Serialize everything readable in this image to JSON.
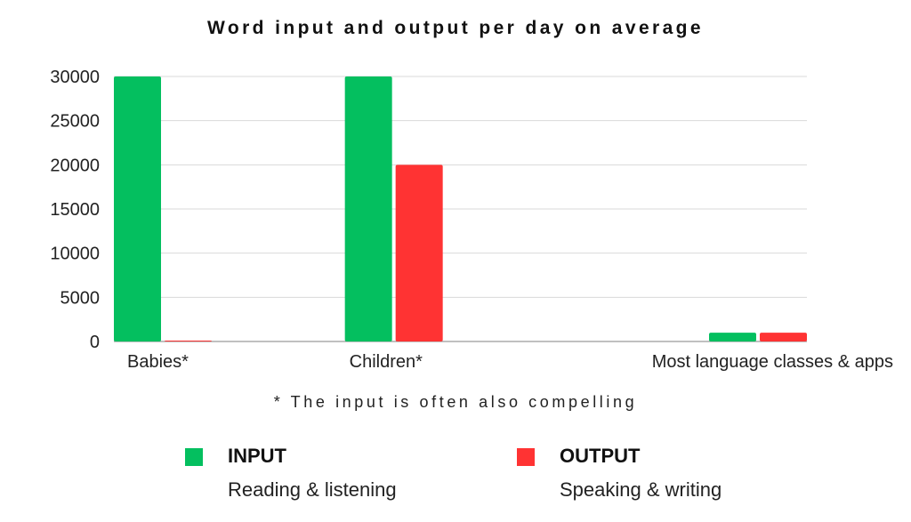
{
  "chart_data": {
    "type": "bar",
    "title": "Word input and output per day on average",
    "categories": [
      "Babies*",
      "Children*",
      "Most language classes & apps"
    ],
    "series": [
      {
        "name": "INPUT",
        "color": "#04BF5F",
        "values": [
          30000,
          30000,
          1000
        ]
      },
      {
        "name": "OUTPUT",
        "color": "#FF3333",
        "values": [
          100,
          20000,
          1000
        ]
      }
    ],
    "ylim": [
      0,
      30000
    ],
    "yticks": [
      0,
      5000,
      10000,
      15000,
      20000,
      25000,
      30000
    ],
    "grid": true,
    "footnote": "* The input is often also compelling",
    "legend": {
      "placement": "bottom",
      "items": [
        {
          "name": "INPUT",
          "description": "Reading & listening",
          "color": "#04BF5F"
        },
        {
          "name": "OUTPUT",
          "description": "Speaking & writing",
          "color": "#FF3333"
        }
      ]
    }
  }
}
